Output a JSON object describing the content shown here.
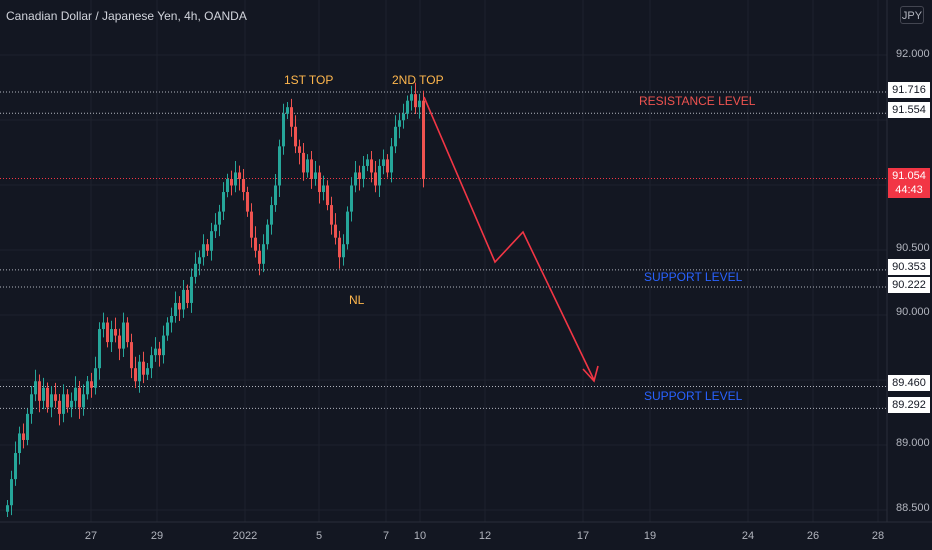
{
  "header": {
    "title": "Canadian Dollar / Japanese Yen, 4h, OANDA",
    "currency": "JPY"
  },
  "annotations": {
    "first_top": "1ST TOP",
    "second_top": "2ND TOP",
    "neckline": "NL",
    "resistance": "RESISTANCE LEVEL",
    "support1": "SUPPORT LEVEL",
    "support2": "SUPPORT LEVEL"
  },
  "price_tags": {
    "r1": "91.716",
    "r2": "91.554",
    "last": "91.054",
    "countdown": "44:43",
    "s1a": "90.353",
    "s1b": "90.222",
    "s2a": "89.460",
    "s2b": "89.292"
  },
  "colors": {
    "up": "#26a69a",
    "down": "#ef5350",
    "background": "#131722",
    "resistance_text": "#ef5350",
    "support_text": "#2962ff",
    "top_text": "#ffb74d",
    "projection": "#f23645"
  },
  "chart_data": {
    "type": "candlestick",
    "title": "Canadian Dollar / Japanese Yen, 4h, OANDA",
    "y_ticks": [
      "92.000",
      "90.500",
      "90.000",
      "89.000",
      "88.500"
    ],
    "x_ticks": [
      "27",
      "29",
      "2022",
      "5",
      "7",
      "10",
      "12",
      "17",
      "19",
      "24",
      "26",
      "28"
    ],
    "horizontal_levels": [
      91.716,
      91.554,
      90.353,
      90.222,
      89.46,
      89.292
    ],
    "last_price": 91.054,
    "projection_path": [
      [
        91.7,
        0
      ],
      [
        90.4,
        10
      ],
      [
        90.6,
        14
      ],
      [
        89.45,
        24
      ]
    ]
  }
}
